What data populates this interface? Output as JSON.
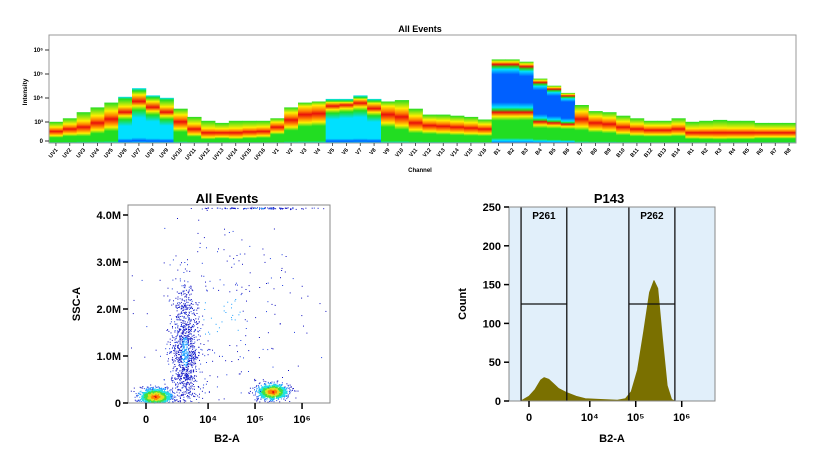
{
  "chart_data": [
    {
      "type": "heatmap",
      "title": "All Events",
      "xlabel": "Channel",
      "ylabel": "Intensity",
      "yscale": "log",
      "yticks": [
        "0",
        "10³",
        "10⁴",
        "10⁵",
        "10⁶"
      ],
      "colors": {
        "low": "#0060ff",
        "mid_low": "#00e0ff",
        "mid": "#22dd22",
        "mid_high": "#ffee00",
        "high": "#e8100a"
      },
      "channels": [
        {
          "name": "UV1",
          "max": 1000,
          "mode": 400
        },
        {
          "name": "UV2",
          "max": 1400,
          "mode": 500
        },
        {
          "name": "UV3",
          "max": 2500,
          "mode": 600
        },
        {
          "name": "UV4",
          "max": 4000,
          "mode": 900
        },
        {
          "name": "UV5",
          "max": 6300,
          "mode": 1300
        },
        {
          "name": "UV6",
          "max": 11000,
          "mode": 2500,
          "blue": "below"
        },
        {
          "name": "UV7",
          "max": 25000,
          "mode": 7000,
          "blue": "below"
        },
        {
          "name": "UV8",
          "max": 12600,
          "mode": 4000,
          "blue": "below"
        },
        {
          "name": "UV9",
          "max": 10000,
          "mode": 2500,
          "blue": "below"
        },
        {
          "name": "UV10",
          "max": 3500,
          "mode": 1000
        },
        {
          "name": "UV11",
          "max": 1600,
          "mode": 500
        },
        {
          "name": "UV12",
          "max": 1100,
          "mode": 350
        },
        {
          "name": "UV13",
          "max": 900,
          "mode": 350
        },
        {
          "name": "UV14",
          "max": 1100,
          "mode": 350
        },
        {
          "name": "UV15",
          "max": 1100,
          "mode": 380
        },
        {
          "name": "UV16",
          "max": 1100,
          "mode": 400
        },
        {
          "name": "V1",
          "max": 1400,
          "mode": 600
        },
        {
          "name": "V2",
          "max": 4000,
          "mode": 1200
        },
        {
          "name": "V3",
          "max": 6300,
          "mode": 2000
        },
        {
          "name": "V4",
          "max": 7000,
          "mode": 2200
        },
        {
          "name": "V5",
          "max": 9000,
          "mode": 4500,
          "blue": "below"
        },
        {
          "name": "V6",
          "max": 9000,
          "mode": 5000,
          "blue": "below"
        },
        {
          "name": "V7",
          "max": 12600,
          "mode": 6000,
          "blue": "below"
        },
        {
          "name": "V8",
          "max": 9000,
          "mode": 3500,
          "blue": "below"
        },
        {
          "name": "V9",
          "max": 7000,
          "mode": 2000
        },
        {
          "name": "V10",
          "max": 8000,
          "mode": 1600
        },
        {
          "name": "V11",
          "max": 3500,
          "mode": 900
        },
        {
          "name": "V12",
          "max": 2000,
          "mode": 700
        },
        {
          "name": "V13",
          "max": 2000,
          "mode": 650
        },
        {
          "name": "V14",
          "max": 1800,
          "mode": 600
        },
        {
          "name": "V15",
          "max": 1600,
          "mode": 550
        },
        {
          "name": "V16",
          "max": 1250,
          "mode": 500
        },
        {
          "name": "B1",
          "max": 400000,
          "mode": 2500,
          "blue": "above"
        },
        {
          "name": "B2",
          "max": 400000,
          "mode": 2500,
          "blue": "above"
        },
        {
          "name": "B3",
          "max": 320000,
          "mode": 2500,
          "blue": "above"
        },
        {
          "name": "B4",
          "max": 63000,
          "mode": 1000,
          "blue": "above"
        },
        {
          "name": "B5",
          "max": 32000,
          "mode": 900,
          "blue": "above"
        },
        {
          "name": "B6",
          "max": 16000,
          "mode": 800,
          "blue": "above"
        },
        {
          "name": "B7",
          "max": 5000,
          "mode": 1300
        },
        {
          "name": "B8",
          "max": 2800,
          "mode": 900
        },
        {
          "name": "B9",
          "max": 2500,
          "mode": 800
        },
        {
          "name": "B10",
          "max": 1800,
          "mode": 600
        },
        {
          "name": "B11",
          "max": 1400,
          "mode": 500
        },
        {
          "name": "B12",
          "max": 1100,
          "mode": 450
        },
        {
          "name": "B13",
          "max": 1100,
          "mode": 450
        },
        {
          "name": "B14",
          "max": 1400,
          "mode": 500
        },
        {
          "name": "R1",
          "max": 1000,
          "mode": 350
        },
        {
          "name": "R2",
          "max": 1100,
          "mode": 350
        },
        {
          "name": "R3",
          "max": 1200,
          "mode": 350
        },
        {
          "name": "R4",
          "max": 1100,
          "mode": 350
        },
        {
          "name": "R5",
          "max": 1100,
          "mode": 350
        },
        {
          "name": "R6",
          "max": 900,
          "mode": 350
        },
        {
          "name": "R7",
          "max": 900,
          "mode": 350
        },
        {
          "name": "R8",
          "max": 900,
          "mode": 350
        }
      ]
    },
    {
      "type": "scatter",
      "title": "All Events",
      "xlabel": "B2-A",
      "ylabel": "SSC-A",
      "xscale": "biexponential",
      "xticks": [
        {
          "value": 0,
          "label": "0"
        },
        {
          "value": 10000,
          "label": "10⁴"
        },
        {
          "value": 100000,
          "label": "10⁵"
        },
        {
          "value": 1000000,
          "label": "10⁶"
        }
      ],
      "yticks": [
        {
          "value": 0,
          "label": "0"
        },
        {
          "value": 1000000,
          "label": "1.0M"
        },
        {
          "value": 2000000,
          "label": "2.0M"
        },
        {
          "value": 3000000,
          "label": "3.0M"
        },
        {
          "value": 4000000,
          "label": "4.0M"
        }
      ],
      "ylim": [
        0,
        4200000
      ],
      "populations": [
        {
          "x": 430,
          "y": 150000,
          "sx_decades": 0.18,
          "sy": 90000,
          "count": 900,
          "dense": true
        },
        {
          "x": 228000,
          "y": 250000,
          "sx_decades": 0.17,
          "sy": 90000,
          "count": 700,
          "dense": true
        },
        {
          "x": 3100,
          "y": 1100000,
          "sx_decades": 0.15,
          "sy": 650000,
          "count": 1100,
          "dense": false
        },
        {
          "x": 20000,
          "y": 1800000,
          "sx_decades": 0.9,
          "sy": 1200000,
          "count": 260,
          "dense": false
        },
        {
          "x": 120000,
          "y": 4150000,
          "sx_decades": 0.6,
          "sy": 8000,
          "count": 120,
          "dense": false
        }
      ]
    },
    {
      "type": "area",
      "title": "P143",
      "xlabel": "B2-A",
      "ylabel": "Count",
      "xscale": "biexponential",
      "xticks": [
        {
          "value": 0,
          "label": "0"
        },
        {
          "value": 10000,
          "label": "10⁴"
        },
        {
          "value": 100000,
          "label": "10⁵"
        },
        {
          "value": 1000000,
          "label": "10⁶"
        }
      ],
      "yticks": [
        0,
        50,
        100,
        150,
        200,
        250
      ],
      "ylim": [
        0,
        250
      ],
      "fill_color": "#7a7000",
      "background_color": "#e1effa",
      "x": [
        -400,
        -200,
        0,
        300,
        600,
        800,
        1100,
        1500,
        2000,
        3000,
        5000,
        8000,
        15000,
        40000,
        60000,
        80000,
        110000,
        150000,
        200000,
        250000,
        300000,
        380000,
        480000,
        600000,
        700000
      ],
      "y": [
        0,
        3,
        6,
        15,
        27,
        30,
        28,
        22,
        16,
        11,
        6,
        3,
        2,
        1,
        3,
        12,
        40,
        90,
        140,
        155,
        145,
        80,
        20,
        2,
        0
      ],
      "gates": [
        {
          "name": "P261",
          "x_min": -390,
          "x_max": 3100,
          "level": 125
        },
        {
          "name": "P262",
          "x_min": 71000,
          "x_max": 710000,
          "level": 125
        }
      ]
    }
  ]
}
